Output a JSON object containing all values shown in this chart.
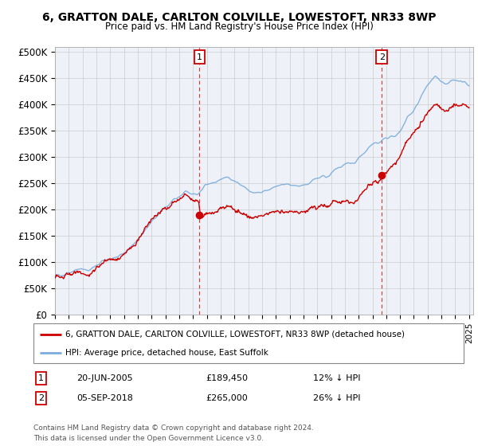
{
  "title1": "6, GRATTON DALE, CARLTON COLVILLE, LOWESTOFT, NR33 8WP",
  "title2": "Price paid vs. HM Land Registry's House Price Index (HPI)",
  "ylabel_ticks": [
    "£0",
    "£50K",
    "£100K",
    "£150K",
    "£200K",
    "£250K",
    "£300K",
    "£350K",
    "£400K",
    "£450K",
    "£500K"
  ],
  "ytick_values": [
    0,
    50000,
    100000,
    150000,
    200000,
    250000,
    300000,
    350000,
    400000,
    450000,
    500000
  ],
  "ylim": [
    0,
    510000
  ],
  "xlim_start": 1995.0,
  "xlim_end": 2025.3,
  "marker1_x": 2005.47,
  "marker1_y": 189450,
  "marker2_x": 2018.68,
  "marker2_y": 265000,
  "legend_line1": "6, GRATTON DALE, CARLTON COLVILLE, LOWESTOFT, NR33 8WP (detached house)",
  "legend_line2": "HPI: Average price, detached house, East Suffolk",
  "annotation1_num": "1",
  "annotation1_date": "20-JUN-2005",
  "annotation1_price": "£189,450",
  "annotation1_hpi": "12% ↓ HPI",
  "annotation2_num": "2",
  "annotation2_date": "05-SEP-2018",
  "annotation2_price": "£265,000",
  "annotation2_hpi": "26% ↓ HPI",
  "footer": "Contains HM Land Registry data © Crown copyright and database right 2024.\nThis data is licensed under the Open Government Licence v3.0.",
  "red_color": "#cc0000",
  "blue_color": "#7aacdc",
  "plot_bg": "#eef2f8",
  "grid_color": "#cccccc"
}
